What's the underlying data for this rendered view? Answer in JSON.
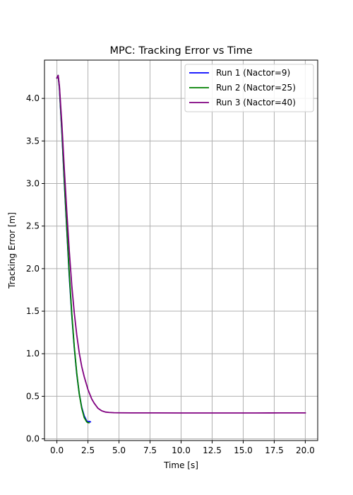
{
  "chart_data": {
    "type": "line",
    "title": "MPC: Tracking Error vs Time",
    "xlabel": "Time [s]",
    "ylabel": "Tracking Error [m]",
    "xlim": [
      -1.0,
      21.0
    ],
    "ylim": [
      -0.02,
      4.45
    ],
    "xticks": [
      0.0,
      2.5,
      5.0,
      7.5,
      10.0,
      12.5,
      15.0,
      17.5,
      20.0
    ],
    "xtick_labels": [
      "0.0",
      "2.5",
      "5.0",
      "7.5",
      "10.0",
      "12.5",
      "15.0",
      "17.5",
      "20.0"
    ],
    "yticks": [
      0.0,
      0.5,
      1.0,
      1.5,
      2.0,
      2.5,
      3.0,
      3.5,
      4.0
    ],
    "ytick_labels": [
      "0.0",
      "0.5",
      "1.0",
      "1.5",
      "2.0",
      "2.5",
      "3.0",
      "3.5",
      "4.0"
    ],
    "grid": true,
    "legend_position": "top-right",
    "series": [
      {
        "name": "Run 1 (Nactor=9)",
        "color": "#0000ff",
        "x": [
          0.0,
          0.1,
          0.2,
          0.4,
          0.6,
          0.8,
          1.0,
          1.2,
          1.4,
          1.6,
          1.8,
          2.0,
          2.2,
          2.4,
          2.5,
          2.6,
          2.7
        ],
        "y": [
          4.24,
          4.27,
          4.12,
          3.6,
          3.0,
          2.45,
          1.9,
          1.45,
          1.07,
          0.76,
          0.53,
          0.37,
          0.27,
          0.21,
          0.2,
          0.205,
          0.2
        ]
      },
      {
        "name": "Run 2 (Nactor=25)",
        "color": "#008000",
        "x": [
          0.0,
          0.1,
          0.2,
          0.4,
          0.6,
          0.8,
          1.0,
          1.2,
          1.4,
          1.6,
          1.8,
          2.0,
          2.2,
          2.4,
          2.5,
          2.6
        ],
        "y": [
          4.24,
          4.27,
          4.13,
          3.62,
          3.02,
          2.47,
          1.93,
          1.47,
          1.08,
          0.77,
          0.53,
          0.36,
          0.25,
          0.2,
          0.19,
          0.19
        ]
      },
      {
        "name": "Run 3 (Nactor=40)",
        "color": "#800080",
        "x": [
          0.0,
          0.1,
          0.2,
          0.4,
          0.6,
          0.8,
          1.0,
          1.2,
          1.4,
          1.6,
          1.8,
          2.0,
          2.2,
          2.5,
          2.8,
          3.0,
          3.3,
          3.6,
          3.9,
          4.2,
          4.6,
          5.0,
          6.0,
          8.0,
          10.0,
          12.0,
          14.0,
          16.0,
          18.0,
          20.0
        ],
        "y": [
          4.24,
          4.27,
          4.15,
          3.7,
          3.16,
          2.66,
          2.2,
          1.8,
          1.48,
          1.22,
          1.01,
          0.85,
          0.73,
          0.58,
          0.47,
          0.42,
          0.36,
          0.33,
          0.315,
          0.31,
          0.307,
          0.306,
          0.305,
          0.305,
          0.304,
          0.304,
          0.304,
          0.304,
          0.305,
          0.305
        ]
      }
    ]
  }
}
